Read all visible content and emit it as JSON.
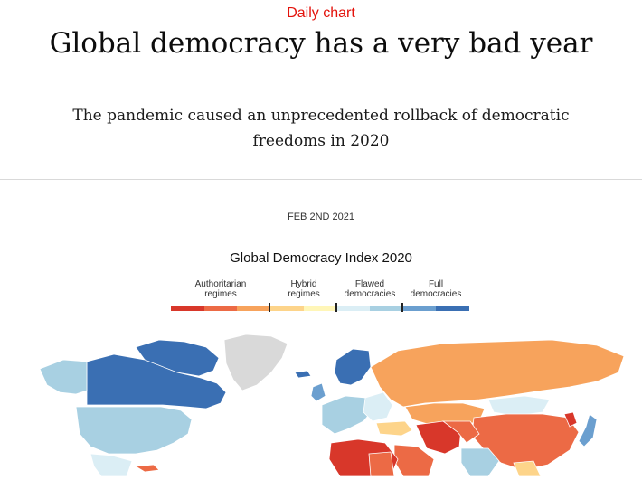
{
  "article": {
    "kicker": "Daily chart",
    "headline": "Global democracy has a very bad year",
    "subhead": "The pandemic caused an unprecedented rollback of democratic freedoms in 2020",
    "date": "FEB 2ND 2021"
  },
  "chart": {
    "title": "Global Democracy Index 2020",
    "legend": {
      "categories": [
        {
          "label_line1": "Authoritarian",
          "label_line2": "regimes",
          "colors": [
            "#d8372a",
            "#ec6a45",
            "#f7a35c"
          ]
        },
        {
          "label_line1": "Hybrid",
          "label_line2": "regimes",
          "colors": [
            "#fdd48a",
            "#fff6b8"
          ]
        },
        {
          "label_line1": "Flawed",
          "label_line2": "democracies",
          "colors": [
            "#dbeef5",
            "#a8d0e2"
          ]
        },
        {
          "label_line1": "Full",
          "label_line2": "democracies",
          "colors": [
            "#6b9fcf",
            "#3a6fb3"
          ]
        }
      ]
    },
    "map_colors": {
      "full": "#3a6fb3",
      "full_light": "#6b9fcf",
      "flawed": "#a8d0e2",
      "flawed_light": "#dbeef5",
      "hybrid": "#fdd48a",
      "hybrid_light": "#fff6b8",
      "auth_light": "#f7a35c",
      "auth_mid": "#ec6a45",
      "auth_dark": "#d8372a",
      "no_data": "#d9d9d9"
    }
  }
}
